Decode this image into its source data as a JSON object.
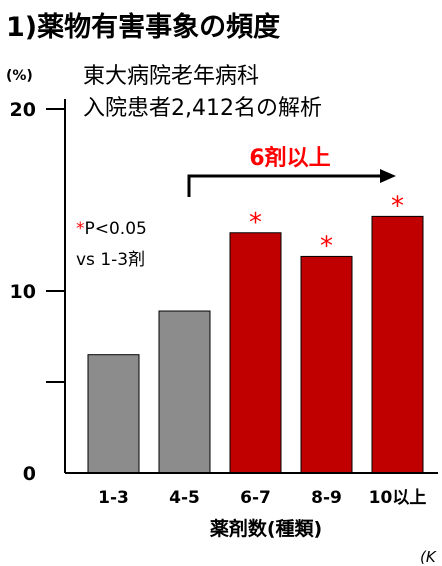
{
  "chart_data": {
    "type": "bar",
    "title": "1)薬物有害事象の頻度",
    "subtitle_lines": [
      "東大病院老年病科",
      "入院患者2,412名の解析"
    ],
    "yunit": "(%)",
    "xlabel": "薬剤数(種類)",
    "categories": [
      "1-3",
      "4-5",
      "6-7",
      "8-9",
      "10以上"
    ],
    "values": [
      6.5,
      8.9,
      13.2,
      11.9,
      14.1
    ],
    "significant": [
      false,
      false,
      true,
      true,
      true
    ],
    "ylim": [
      0,
      21
    ],
    "yticks": [
      0,
      10,
      20
    ],
    "bracket_label": "6剤以上",
    "note_lines": [
      "*P<0.05",
      "vs 1-3剤"
    ],
    "star_symbol": "*",
    "corner_text": "(K",
    "colors": {
      "gray_bar": "#8c8c8c",
      "red_bar": "#c00000",
      "accent": "#ff0000",
      "axis": "#000000"
    }
  }
}
